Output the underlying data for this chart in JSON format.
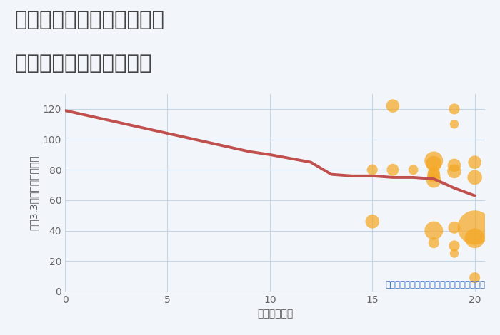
{
  "title_line1": "大阪府東大阪市南上小阪の",
  "title_line2": "駅距離別中古戸建て価格",
  "xlabel": "駅距離（分）",
  "ylabel": "坪（3.3㎡）単価（万円）",
  "annotation": "円の大きさは、取引のあった物件面積を示す",
  "bg_color": "#f2f6fb",
  "line_color": "#c0504d",
  "line_x": [
    0,
    3,
    5,
    7,
    9,
    10,
    12,
    13,
    14,
    15,
    16,
    17,
    18,
    19,
    20
  ],
  "line_y": [
    119,
    110,
    104,
    98,
    92,
    90,
    85,
    77,
    76,
    76,
    75,
    75,
    74,
    68,
    63
  ],
  "scatter_x": [
    15,
    15,
    16,
    16,
    17,
    18,
    18,
    18,
    18,
    18,
    18,
    18,
    19,
    19,
    19,
    19,
    19,
    19,
    19,
    20,
    20,
    20,
    20,
    20
  ],
  "scatter_y": [
    46,
    80,
    80,
    122,
    80,
    86,
    84,
    78,
    76,
    73,
    40,
    32,
    120,
    110,
    83,
    79,
    42,
    30,
    25,
    85,
    75,
    42,
    35,
    9
  ],
  "scatter_sizes": [
    200,
    120,
    150,
    180,
    100,
    350,
    250,
    150,
    180,
    220,
    350,
    120,
    120,
    80,
    180,
    200,
    150,
    120,
    80,
    180,
    220,
    1200,
    400,
    120
  ],
  "scatter_color": "#f5a824",
  "scatter_alpha": 0.72,
  "xlim": [
    0,
    20.5
  ],
  "ylim": [
    0,
    130
  ],
  "xticks": [
    0,
    5,
    10,
    15,
    20
  ],
  "yticks": [
    0,
    20,
    40,
    60,
    80,
    100,
    120
  ],
  "grid_color": "#c5d5e8",
  "title_color": "#444444",
  "title_fontsize": 21,
  "axis_label_fontsize": 10,
  "tick_fontsize": 10,
  "annotation_fontsize": 8.5,
  "annotation_color": "#4472c4"
}
